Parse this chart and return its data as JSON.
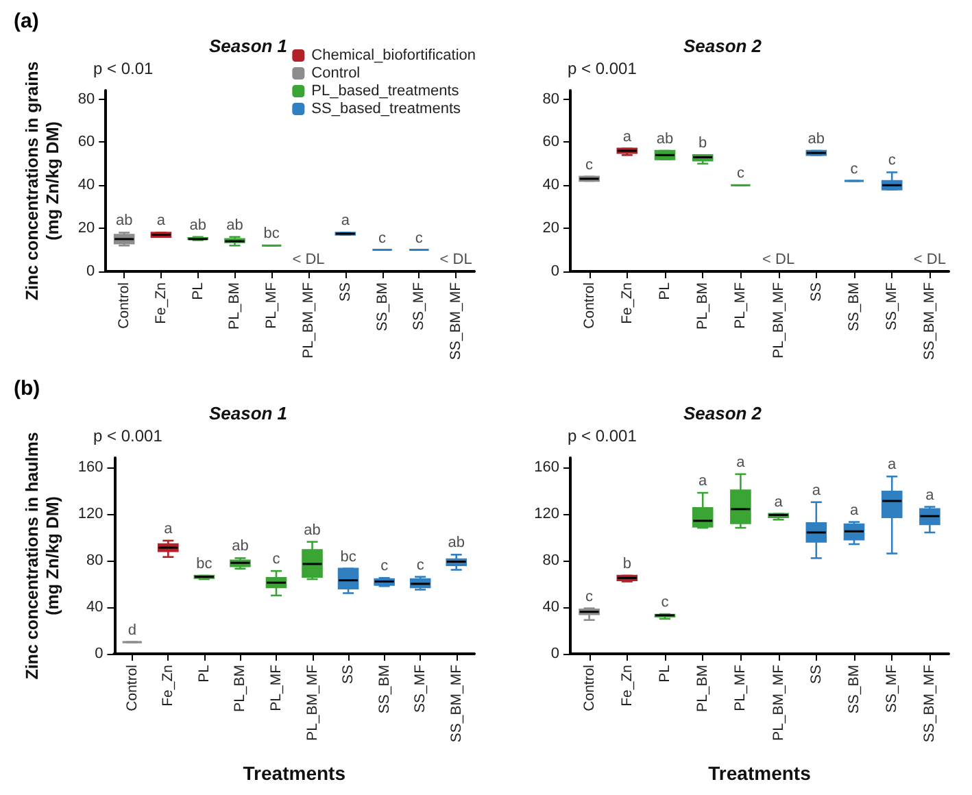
{
  "chart_data": [
    {
      "type": "box",
      "title": "Season 1",
      "ylabel": "Zinc concentrations in grains\n(mg Zn/kg DM)",
      "categories": [
        "Control",
        "Fe_Zn",
        "PL",
        "PL_BM",
        "PL_MF",
        "PL_BM_MF",
        "SS",
        "SS_BM",
        "SS_MF",
        "SS_BM_MF"
      ],
      "ylim": [
        0,
        84
      ],
      "yticks": [
        0,
        20,
        40,
        60,
        80
      ],
      "legend": "top right",
      "series": [
        {
          "name": "Chemical_biofortification",
          "color": "#b22028",
          "boxes": [
            null,
            {
              "low": 16,
              "q1": 16,
              "median": 17,
              "q3": 18,
              "high": 18
            },
            null,
            null,
            null,
            null,
            null,
            null,
            null,
            null
          ]
        },
        {
          "name": "Control",
          "color": "#8c8c8c",
          "boxes": [
            {
              "low": 12,
              "q1": 13,
              "median": 15,
              "q3": 17,
              "high": 18
            },
            null,
            null,
            null,
            null,
            null,
            null,
            null,
            null,
            null
          ]
        },
        {
          "name": "PL_based_treatments",
          "color": "#3aa435",
          "boxes": [
            null,
            null,
            {
              "low": 14.5,
              "q1": 15,
              "median": 15,
              "q3": 15.5,
              "high": 16
            },
            {
              "low": 12,
              "q1": 13.5,
              "median": 14,
              "q3": 15,
              "high": 16
            },
            {
              "low": 12,
              "q1": 12,
              "median": 12,
              "q3": 12,
              "high": 12
            },
            null,
            null,
            null,
            null,
            null
          ]
        },
        {
          "name": "SS_based_treatments",
          "color": "#2f7fc1",
          "boxes": [
            null,
            null,
            null,
            null,
            null,
            null,
            {
              "low": 17,
              "q1": 17,
              "median": 17.5,
              "q3": 18,
              "high": 18
            },
            {
              "low": 10,
              "q1": 10,
              "median": 10,
              "q3": 10,
              "high": 10
            },
            {
              "low": 10,
              "q1": 10,
              "median": 10,
              "q3": 10,
              "high": 10
            },
            null
          ]
        }
      ],
      "annotations": [
        "ab",
        "a",
        "ab",
        "ab",
        "bc",
        "< DL",
        "a",
        "c",
        "c",
        "< DL",
        "p < 0.01",
        "(a)"
      ]
    },
    {
      "type": "box",
      "title": "Season 2",
      "categories": [
        "Control",
        "Fe_Zn",
        "PL",
        "PL_BM",
        "PL_MF",
        "PL_BM_MF",
        "SS",
        "SS_BM",
        "SS_MF",
        "SS_BM_MF"
      ],
      "ylim": [
        0,
        84
      ],
      "yticks": [
        0,
        20,
        40,
        60,
        80
      ],
      "series": [
        {
          "color": "#b22028",
          "boxes": [
            null,
            {
              "low": 54,
              "q1": 55,
              "median": 56,
              "q3": 57,
              "high": 57
            },
            null,
            null,
            null,
            null,
            null,
            null,
            null,
            null
          ]
        },
        {
          "color": "#8c8c8c",
          "boxes": [
            {
              "low": 42,
              "q1": 42,
              "median": 43,
              "q3": 44,
              "high": 44
            },
            null,
            null,
            null,
            null,
            null,
            null,
            null,
            null,
            null
          ]
        },
        {
          "color": "#3aa435",
          "boxes": [
            null,
            null,
            {
              "low": 52,
              "q1": 52,
              "median": 54,
              "q3": 56,
              "high": 56
            },
            {
              "low": 50,
              "q1": 51.5,
              "median": 53,
              "q3": 54,
              "high": 54
            },
            {
              "low": 40,
              "q1": 40,
              "median": 40,
              "q3": 40,
              "high": 40
            },
            null,
            null,
            null,
            null,
            null
          ]
        },
        {
          "color": "#2f7fc1",
          "boxes": [
            null,
            null,
            null,
            null,
            null,
            null,
            {
              "low": 54,
              "q1": 54,
              "median": 55,
              "q3": 56,
              "high": 56
            },
            {
              "low": 42,
              "q1": 42,
              "median": 42,
              "q3": 42,
              "high": 42
            },
            {
              "low": 38,
              "q1": 38,
              "median": 40,
              "q3": 42,
              "high": 46
            },
            null
          ]
        }
      ],
      "annotations": [
        "c",
        "a",
        "ab",
        "b",
        "c",
        "< DL",
        "ab",
        "c",
        "c",
        "< DL",
        "p < 0.001"
      ]
    },
    {
      "type": "box",
      "title": "Season 1",
      "xlabel": "Treatments",
      "ylabel": "Zinc concentrations in haulms\n(mg Zn/kg DM)",
      "categories": [
        "Control",
        "Fe_Zn",
        "PL",
        "PL_BM",
        "PL_MF",
        "PL_BM_MF",
        "SS",
        "SS_BM",
        "SS_MF",
        "SS_BM_MF"
      ],
      "ylim": [
        0,
        168
      ],
      "yticks": [
        0,
        40,
        80,
        120,
        160
      ],
      "series": [
        {
          "color": "#b22028",
          "boxes": [
            null,
            {
              "low": 83,
              "q1": 88,
              "median": 91,
              "q3": 94,
              "high": 97
            },
            null,
            null,
            null,
            null,
            null,
            null,
            null,
            null
          ]
        },
        {
          "color": "#8c8c8c",
          "boxes": [
            {
              "low": 10,
              "q1": 10,
              "median": 10,
              "q3": 10,
              "high": 10
            },
            null,
            null,
            null,
            null,
            null,
            null,
            null,
            null,
            null
          ]
        },
        {
          "color": "#3aa435",
          "boxes": [
            null,
            null,
            {
              "low": 64,
              "q1": 65,
              "median": 66,
              "q3": 67,
              "high": 67
            },
            {
              "low": 73,
              "q1": 75,
              "median": 78,
              "q3": 80,
              "high": 82
            },
            {
              "low": 50,
              "q1": 57,
              "median": 61,
              "q3": 65,
              "high": 71
            },
            {
              "low": 64,
              "q1": 66,
              "median": 77,
              "q3": 89,
              "high": 96
            },
            null,
            null,
            null,
            null
          ]
        },
        {
          "color": "#2f7fc1",
          "boxes": [
            null,
            null,
            null,
            null,
            null,
            null,
            {
              "low": 52,
              "q1": 56,
              "median": 63,
              "q3": 73,
              "high": 73
            },
            {
              "low": 58,
              "q1": 59,
              "median": 62,
              "q3": 64,
              "high": 65
            },
            {
              "low": 55,
              "q1": 57,
              "median": 60,
              "q3": 64,
              "high": 66
            },
            {
              "low": 72,
              "q1": 76,
              "median": 79,
              "q3": 81,
              "high": 85
            }
          ]
        }
      ],
      "annotations": [
        "d",
        "a",
        "bc",
        "ab",
        "c",
        "ab",
        "bc",
        "c",
        "c",
        "ab",
        "p < 0.001",
        "(b)"
      ]
    },
    {
      "type": "box",
      "title": "Season 2",
      "xlabel": "Treatments",
      "categories": [
        "Control",
        "Fe_Zn",
        "PL",
        "PL_BM",
        "PL_MF",
        "PL_BM_MF",
        "SS",
        "SS_BM",
        "SS_MF",
        "SS_BM_MF"
      ],
      "ylim": [
        0,
        168
      ],
      "yticks": [
        0,
        40,
        80,
        120,
        160
      ],
      "series": [
        {
          "color": "#b22028",
          "boxes": [
            null,
            {
              "low": 62,
              "q1": 63,
              "median": 65,
              "q3": 67,
              "high": 67
            },
            null,
            null,
            null,
            null,
            null,
            null,
            null,
            null
          ]
        },
        {
          "color": "#8c8c8c",
          "boxes": [
            {
              "low": 29,
              "q1": 34,
              "median": 36,
              "q3": 38,
              "high": 39
            },
            null,
            null,
            null,
            null,
            null,
            null,
            null,
            null,
            null
          ]
        },
        {
          "color": "#3aa435",
          "boxes": [
            null,
            null,
            {
              "low": 30,
              "q1": 32,
              "median": 33,
              "q3": 33.5,
              "high": 34
            },
            {
              "low": 108,
              "q1": 109,
              "median": 114,
              "q3": 125,
              "high": 138
            },
            {
              "low": 108,
              "q1": 112,
              "median": 124,
              "q3": 140,
              "high": 154
            },
            {
              "low": 115,
              "q1": 117,
              "median": 119,
              "q3": 120,
              "high": 120
            },
            null,
            null,
            null,
            null
          ]
        },
        {
          "color": "#2f7fc1",
          "boxes": [
            null,
            null,
            null,
            null,
            null,
            null,
            {
              "low": 82,
              "q1": 96,
              "median": 104,
              "q3": 112,
              "high": 130
            },
            {
              "low": 94,
              "q1": 98,
              "median": 105,
              "q3": 111,
              "high": 113
            },
            {
              "low": 86,
              "q1": 117,
              "median": 131,
              "q3": 139,
              "high": 152
            },
            {
              "low": 104,
              "q1": 111,
              "median": 118,
              "q3": 124,
              "high": 126
            }
          ]
        }
      ],
      "annotations": [
        "c",
        "b",
        "c",
        "a",
        "a",
        "a",
        "a",
        "a",
        "a",
        "a",
        "p < 0.001"
      ]
    }
  ]
}
